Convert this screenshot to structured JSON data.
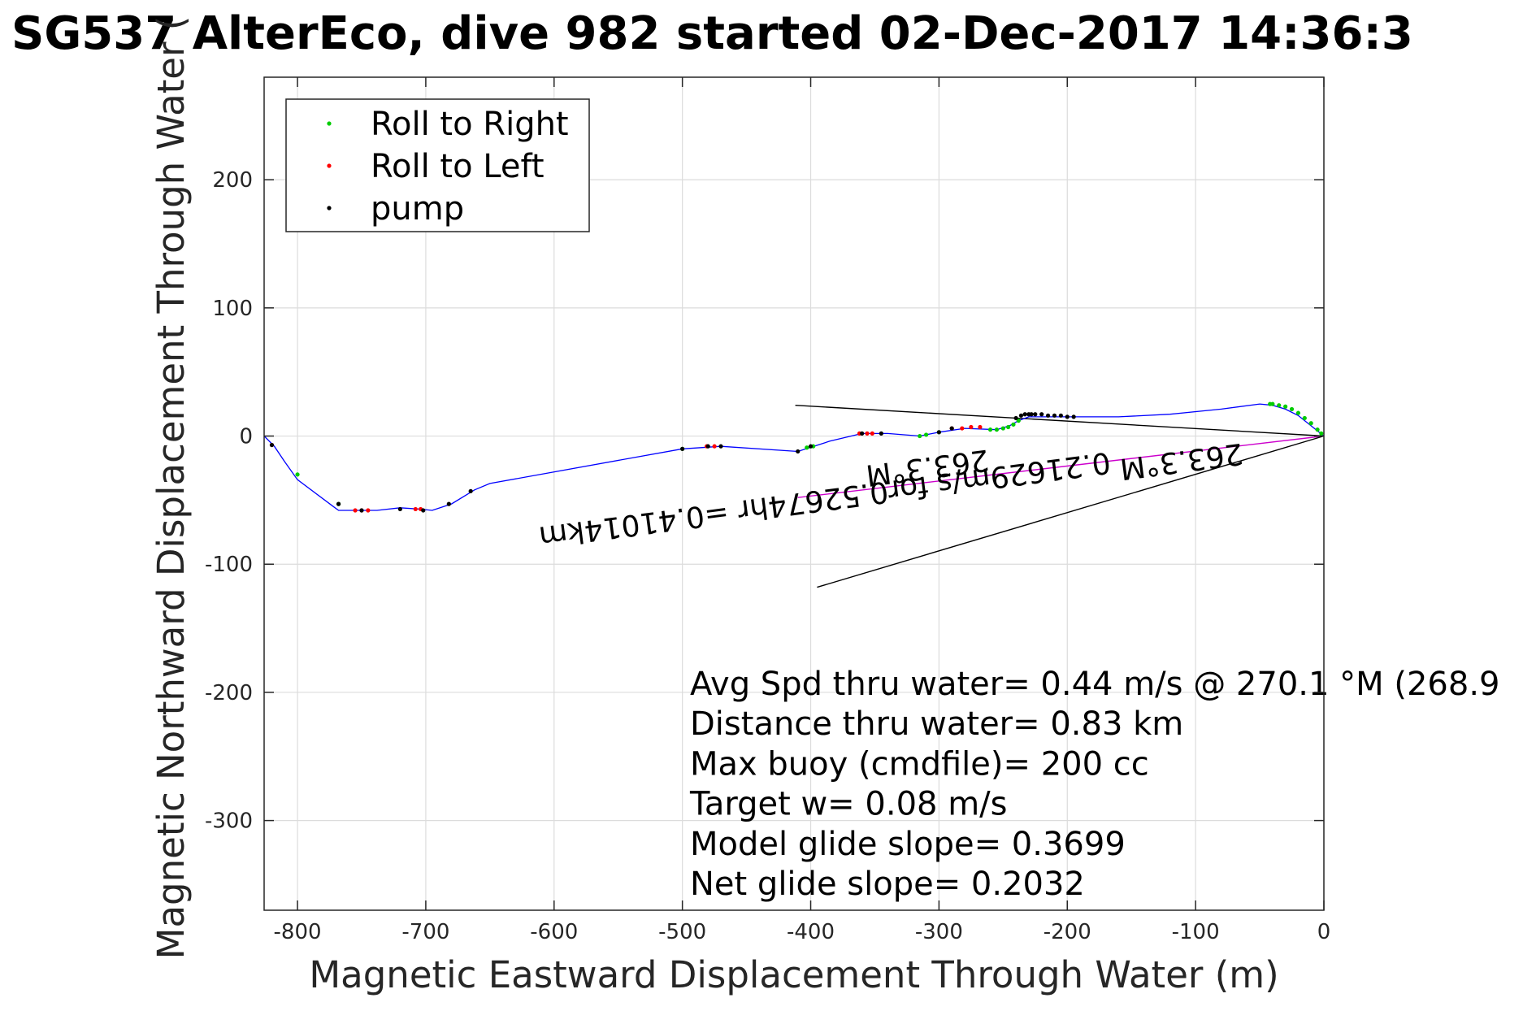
{
  "chart_data": {
    "type": "line",
    "title": "SG537 AlterEco, dive 982 started 02-Dec-2017 14:36:3",
    "xlabel": "Magnetic Eastward Displacement Through Water (m)",
    "ylabel": "Magnetic Northward Displacement Through Water (",
    "xlim": [
      -826,
      0
    ],
    "ylim": [
      -370,
      280
    ],
    "xticks": [
      -800,
      -700,
      -600,
      -500,
      -400,
      -300,
      -200,
      -100,
      0
    ],
    "yticks": [
      -300,
      -200,
      -100,
      0,
      100,
      200
    ],
    "grid": true,
    "legend_position": "top-left",
    "colors": {
      "track": "#0000ff",
      "roll_right": "#00cc00",
      "roll_left": "#ff0000",
      "pump": "#000000",
      "current": "#cc00cc",
      "vectors": "#000000"
    },
    "legend": [
      {
        "label": "Roll to Right",
        "color": "#00cc00"
      },
      {
        "label": "Roll to Left",
        "color": "#ff0000"
      },
      {
        "label": "pump",
        "color": "#000000"
      }
    ],
    "series": [
      {
        "type": "line",
        "x": [
          0,
          -10,
          -20,
          -30,
          -40,
          -50,
          -80,
          -120,
          -160,
          -200,
          -230,
          -238,
          -245,
          -255,
          -280,
          -300,
          -315,
          -340,
          -360,
          -385,
          -410,
          -470,
          -500,
          -650,
          -662,
          -680,
          -695,
          -705,
          -720,
          -738,
          -758,
          -768,
          -772,
          -800,
          -810,
          -818,
          -826
        ],
        "y": [
          0,
          8,
          16,
          21,
          24,
          25,
          21,
          17,
          15,
          15,
          15,
          12,
          8,
          5,
          6,
          3,
          0,
          2,
          2,
          -4,
          -12,
          -8,
          -10,
          -37,
          -42,
          -53,
          -58,
          -57,
          -56,
          -58,
          -58,
          -58,
          -55,
          -34,
          -20,
          -8,
          0
        ]
      },
      {
        "name": "Roll to Right",
        "type": "scatter",
        "x": [
          -2,
          -5,
          -10,
          -15,
          -20,
          -25,
          -30,
          -35,
          -40,
          -42,
          -238,
          -242,
          -246,
          -250,
          -255,
          -260,
          -300,
          -310,
          -315,
          -398,
          -403,
          -500,
          -768,
          -800
        ],
        "y": [
          2,
          5,
          10,
          14,
          18,
          21,
          23,
          24,
          25,
          25,
          12,
          9,
          7,
          6,
          5,
          5,
          3,
          1,
          0,
          -8,
          -9,
          -10,
          -53,
          -30
        ]
      },
      {
        "name": "Roll to Left",
        "type": "scatter",
        "x": [
          -268,
          -275,
          -282,
          -290,
          -352,
          -356,
          -362,
          -475,
          -481,
          -704,
          -708,
          -745,
          -750,
          -755,
          -820
        ],
        "y": [
          7,
          7,
          6,
          6,
          2,
          2,
          2,
          -8,
          -8,
          -57,
          -57,
          -58,
          -58,
          -58,
          -7
        ]
      },
      {
        "name": "pump",
        "type": "scatter",
        "x": [
          -195,
          -200,
          -205,
          -210,
          -215,
          -220,
          -225,
          -228,
          -230,
          -233,
          -236,
          -240,
          -290,
          -300,
          -345,
          -360,
          -400,
          -410,
          -470,
          -480,
          -500,
          -665,
          -682,
          -702,
          -720,
          -750,
          -768,
          -820
        ],
        "y": [
          15,
          15,
          16,
          16,
          16,
          17,
          17,
          17,
          17,
          17,
          16,
          14,
          6,
          3,
          2,
          2,
          -8,
          -12,
          -8,
          -8,
          -10,
          -43,
          -53,
          -58,
          -57,
          -58,
          -53,
          -7
        ]
      },
      {
        "type": "line",
        "x": [
          0,
          -410
        ],
        "y": [
          0,
          -48
        ]
      },
      {
        "type": "line",
        "x": [
          0,
          -412
        ],
        "y": [
          0,
          24
        ]
      },
      {
        "type": "line",
        "x": [
          0,
          -395
        ],
        "y": [
          0,
          -118
        ]
      }
    ],
    "annotations": {
      "stats": [
        "Avg Spd thru water=  0.44 m/s @ 270.1 °M (268.9",
        "Distance thru water=  0.83 km",
        "Max buoy (cmdfile)= 200 cc",
        "Target w= 0.08 m/s",
        "Model glide slope= 0.3699",
        "Net glide slope= 0.2032"
      ],
      "rotated": [
        {
          "text": "263.3°M",
          "x": -112,
          "y": -12
        },
        {
          "text": "0.21629m/s for0.52674hr =0.41014km",
          "x": -390,
          "y": -42
        },
        {
          "text": "263.3°M",
          "x": -310,
          "y": -17
        }
      ]
    }
  }
}
